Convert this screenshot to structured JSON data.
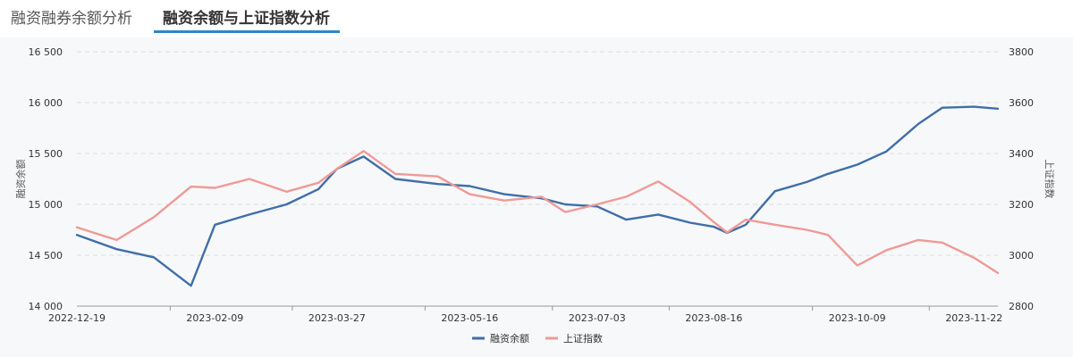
{
  "tabs": [
    {
      "label": "融资融券余额分析",
      "active": false
    },
    {
      "label": "融资余额与上证指数分析",
      "active": true
    }
  ],
  "colors": {
    "series1": "#3f6fa8",
    "series2": "#ef9a96",
    "tab_underline": "#2f86c9",
    "grid": "#dcdcdc",
    "background": "#f7f8fa"
  },
  "chart_data": {
    "type": "line",
    "title": "",
    "ylabel_left": "融资余额",
    "ylabel_right": "上证指数",
    "ylim_left": [
      14000,
      16500
    ],
    "ylim_right": [
      2800,
      3800
    ],
    "yticks_left": [
      "14 000",
      "14 500",
      "15 000",
      "15 500",
      "16 000",
      "16 500"
    ],
    "yticks_right": [
      "2800",
      "3000",
      "3200",
      "3400",
      "3600",
      "3800"
    ],
    "xticks": [
      "2022-12-19",
      "2023-02-09",
      "2023-03-27",
      "2023-05-16",
      "2023-07-03",
      "2023-08-16",
      "2023-10-09",
      "2023-11-22"
    ],
    "grid": true,
    "legend_position": "bottom-center",
    "series": [
      {
        "name": "融资余额",
        "axis": "left",
        "x": [
          "2022-12-19",
          "2023-01-03",
          "2023-01-17",
          "2023-01-31",
          "2023-02-09",
          "2023-02-22",
          "2023-03-08",
          "2023-03-20",
          "2023-03-27",
          "2023-04-06",
          "2023-04-18",
          "2023-05-04",
          "2023-05-16",
          "2023-05-29",
          "2023-06-12",
          "2023-06-21",
          "2023-07-03",
          "2023-07-14",
          "2023-07-26",
          "2023-08-07",
          "2023-08-16",
          "2023-08-21",
          "2023-08-28",
          "2023-09-08",
          "2023-09-20",
          "2023-09-28",
          "2023-10-09",
          "2023-10-20",
          "2023-11-01",
          "2023-11-10",
          "2023-11-22",
          "2023-12-01"
        ],
        "values": [
          14700,
          14560,
          14480,
          14200,
          14800,
          14900,
          15000,
          15150,
          15350,
          15470,
          15250,
          15200,
          15180,
          15100,
          15060,
          15000,
          14980,
          14850,
          14900,
          14820,
          14780,
          14720,
          14800,
          15130,
          15220,
          15300,
          15390,
          15520,
          15790,
          15950,
          15960,
          15940
        ]
      },
      {
        "name": "上证指数",
        "axis": "right",
        "x": [
          "2022-12-19",
          "2023-01-03",
          "2023-01-17",
          "2023-01-31",
          "2023-02-09",
          "2023-02-22",
          "2023-03-08",
          "2023-03-20",
          "2023-03-27",
          "2023-04-06",
          "2023-04-18",
          "2023-05-04",
          "2023-05-16",
          "2023-05-29",
          "2023-06-12",
          "2023-06-21",
          "2023-07-03",
          "2023-07-14",
          "2023-07-26",
          "2023-08-07",
          "2023-08-16",
          "2023-08-21",
          "2023-08-28",
          "2023-09-08",
          "2023-09-20",
          "2023-09-28",
          "2023-10-09",
          "2023-10-20",
          "2023-11-01",
          "2023-11-10",
          "2023-11-22",
          "2023-12-01"
        ],
        "values": [
          3110,
          3060,
          3150,
          3270,
          3265,
          3300,
          3250,
          3285,
          3340,
          3410,
          3320,
          3310,
          3240,
          3215,
          3230,
          3170,
          3200,
          3230,
          3290,
          3210,
          3130,
          3090,
          3140,
          3120,
          3100,
          3080,
          2960,
          3020,
          3060,
          3050,
          2990,
          2930
        ]
      }
    ]
  }
}
